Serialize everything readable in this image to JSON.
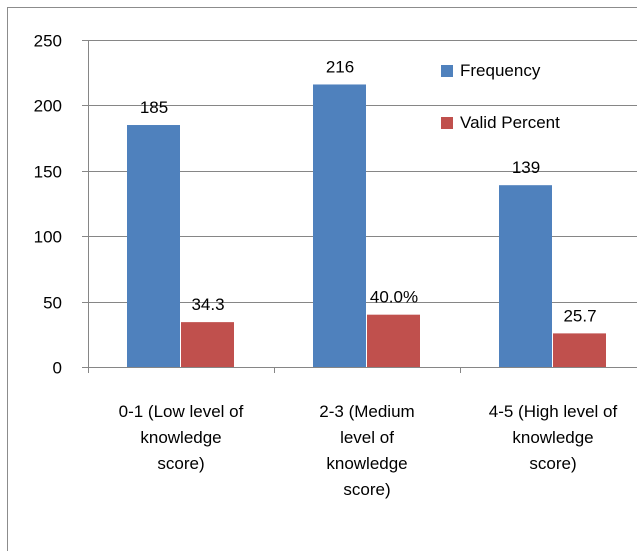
{
  "chart_data": {
    "type": "bar",
    "categories": [
      [
        "0-1 (Low level of",
        "knowledge",
        "score)"
      ],
      [
        "2-3 (Medium",
        "level of",
        "knowledge",
        "score)"
      ],
      [
        "4-5 (High level of",
        "knowledge",
        "score)"
      ]
    ],
    "series": [
      {
        "name": "Frequency",
        "values": [
          185,
          216,
          139
        ],
        "color": "#4f81bd",
        "data_labels": [
          "185",
          "216",
          "139"
        ]
      },
      {
        "name": "Valid Percent",
        "values": [
          34.3,
          40.0,
          25.7
        ],
        "color": "#c0504d",
        "data_labels": [
          "34.3",
          "40.0%",
          "25.7"
        ]
      }
    ],
    "ylim": [
      0,
      250
    ],
    "yticks": [
      0,
      50,
      100,
      150,
      200,
      250
    ],
    "ytick_labels": [
      "0",
      "50",
      "100",
      "150",
      "200",
      "250"
    ],
    "grid": true,
    "legend_position": "top-right"
  }
}
